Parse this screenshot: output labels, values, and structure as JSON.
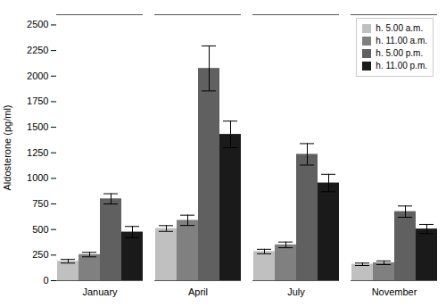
{
  "chart_data": {
    "type": "bar",
    "categories": [
      "January",
      "April",
      "July",
      "November"
    ],
    "series": [
      {
        "name": "h. 5.00 a.m.",
        "color": "#c0c0c0",
        "values": [
          190,
          510,
          285,
          160
        ],
        "errors": [
          18,
          28,
          22,
          12
        ]
      },
      {
        "name": "h. 11.00 a.m.",
        "color": "#808080",
        "values": [
          255,
          590,
          350,
          175
        ],
        "errors": [
          22,
          50,
          28,
          18
        ]
      },
      {
        "name": "h. 5.00 p.m.",
        "color": "#606060",
        "values": [
          800,
          2075,
          1235,
          675
        ],
        "errors": [
          50,
          220,
          105,
          55
        ]
      },
      {
        "name": "h. 11.00 p.m.",
        "color": "#1a1a1a",
        "values": [
          475,
          1430,
          955,
          505
        ],
        "errors": [
          55,
          130,
          85,
          45
        ]
      }
    ],
    "ylabel": "Aldosterone (pg/ml)",
    "ylim": [
      0,
      2600
    ],
    "yticks": [
      0,
      250,
      500,
      750,
      1000,
      1250,
      1500,
      1750,
      2000,
      2250,
      2500
    ],
    "legend": "upper right"
  }
}
